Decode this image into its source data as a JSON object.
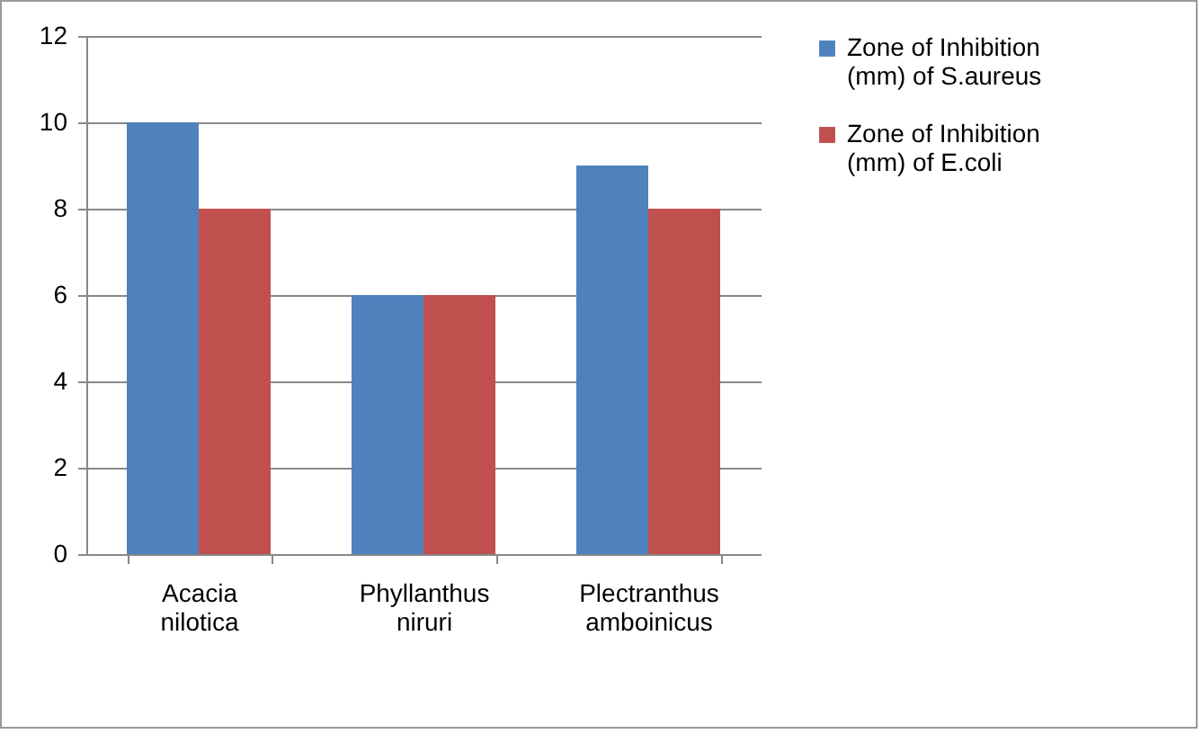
{
  "chart_data": {
    "type": "bar",
    "categories": [
      "Acacia nilotica",
      "Phyllanthus niruri",
      "Plectranthus amboinicus"
    ],
    "series": [
      {
        "name": "Zone of Inhibition (mm) of S.aureus",
        "color": "#4f81bd",
        "values": [
          10,
          6,
          9
        ]
      },
      {
        "name": "Zone of Inhibition (mm) of E.coli",
        "color": "#c0504d",
        "values": [
          8,
          6,
          8
        ]
      }
    ],
    "ylim": [
      0,
      12
    ],
    "yticks": [
      0,
      2,
      4,
      6,
      8,
      10,
      12
    ],
    "grid": "y",
    "legend": "right"
  }
}
